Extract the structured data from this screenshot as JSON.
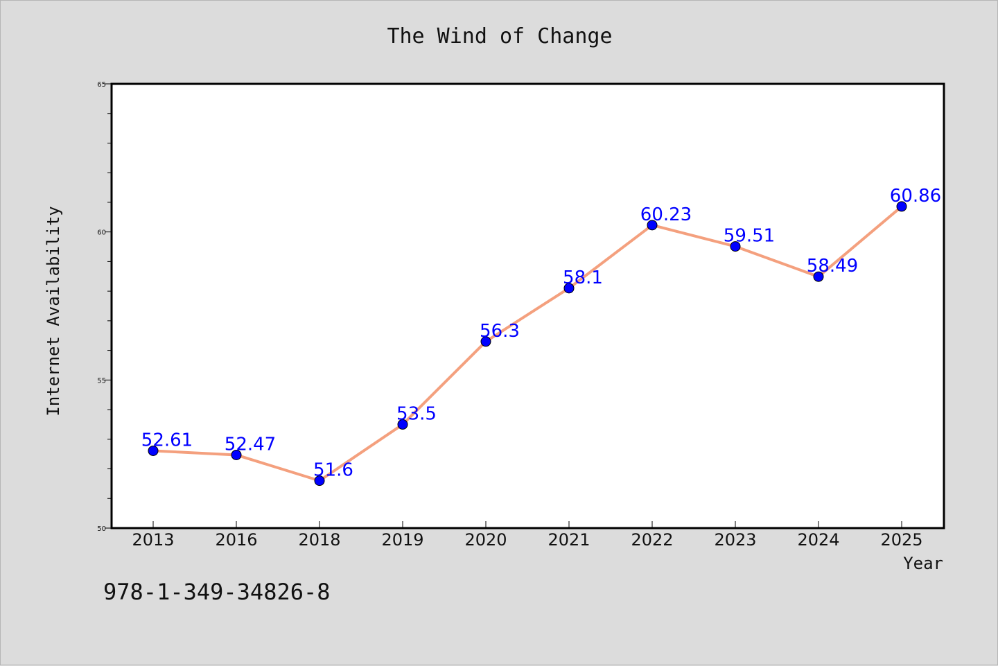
{
  "chart_data": {
    "type": "line",
    "title": "The Wind of Change",
    "xlabel": "Year",
    "ylabel": "Internet Availability",
    "categories": [
      "2013",
      "2016",
      "2018",
      "2019",
      "2020",
      "2021",
      "2022",
      "2023",
      "2024",
      "2025"
    ],
    "series": [
      {
        "values": [
          52.61,
          52.47,
          51.6,
          53.5,
          56.3,
          58.1,
          60.23,
          59.51,
          58.49,
          60.86
        ],
        "data_labels": [
          "52.61",
          "52.47",
          "51.6",
          "53.5",
          "56.3",
          "58.1",
          "60.23",
          "59.51",
          "58.49",
          "60.86"
        ]
      }
    ],
    "ylim": [
      50,
      65
    ],
    "y_major_ticks": [
      50,
      55,
      60,
      65
    ],
    "y_minor_step": 1,
    "grid": false,
    "line_color": "#f4a07e",
    "marker_color": "#0000ff",
    "label_color": "#0000ff",
    "background_color": "#dcdcdc",
    "plot_background_color": "#ffffff"
  },
  "footer": {
    "isbn": "978-1-349-34826-8"
  }
}
